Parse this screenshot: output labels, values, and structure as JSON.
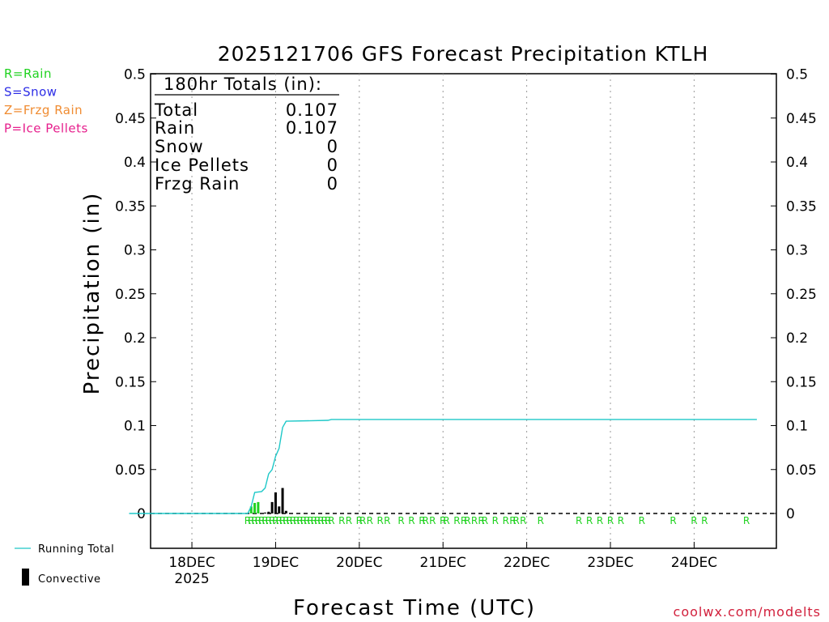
{
  "chart_data": {
    "type": "bar",
    "title": "2025121706 GFS Forecast Precipitation KTLH",
    "xlabel": "Forecast Time (UTC)",
    "ylabel": "Precipitation (in)",
    "ylim": [
      -0.04,
      0.5
    ],
    "yticks": [
      "0",
      "0.05",
      "0.1",
      "0.15",
      "0.2",
      "0.25",
      "0.3",
      "0.35",
      "0.4",
      "0.45",
      "0.5"
    ],
    "xlim_hours": [
      0,
      180
    ],
    "x_units": "forecast hours from 2025121706",
    "x_ticks": [
      {
        "hour": 18,
        "label": "18DEC",
        "sublabel": "2025"
      },
      {
        "hour": 42,
        "label": "19DEC",
        "sublabel": ""
      },
      {
        "hour": 66,
        "label": "20DEC",
        "sublabel": ""
      },
      {
        "hour": 90,
        "label": "21DEC",
        "sublabel": ""
      },
      {
        "hour": 114,
        "label": "22DEC",
        "sublabel": ""
      },
      {
        "hour": 138,
        "label": "23DEC",
        "sublabel": ""
      },
      {
        "hour": 162,
        "label": "24DEC",
        "sublabel": ""
      }
    ],
    "grid": "vertical dotted at day boundaries",
    "series": [
      {
        "name": "Rain",
        "values": [
          {
            "hour": 35,
            "value": 0.008
          },
          {
            "hour": 36,
            "value": 0.012
          },
          {
            "hour": 37,
            "value": 0.013
          }
        ]
      },
      {
        "name": "Convective",
        "values": [
          {
            "hour": 39,
            "value": 0.001
          },
          {
            "hour": 40,
            "value": 0.002
          },
          {
            "hour": 41,
            "value": 0.013
          },
          {
            "hour": 42,
            "value": 0.024
          },
          {
            "hour": 43,
            "value": 0.008
          },
          {
            "hour": 44,
            "value": 0.029
          },
          {
            "hour": 45,
            "value": 0.003
          }
        ]
      },
      {
        "name": "Running Total",
        "points": [
          {
            "hour": 0,
            "value": 0
          },
          {
            "hour": 34,
            "value": 0
          },
          {
            "hour": 35,
            "value": 0.008
          },
          {
            "hour": 36,
            "value": 0.024
          },
          {
            "hour": 38,
            "value": 0.025
          },
          {
            "hour": 39,
            "value": 0.029
          },
          {
            "hour": 40,
            "value": 0.045
          },
          {
            "hour": 41,
            "value": 0.05
          },
          {
            "hour": 42,
            "value": 0.065
          },
          {
            "hour": 43,
            "value": 0.074
          },
          {
            "hour": 44,
            "value": 0.098
          },
          {
            "hour": 45,
            "value": 0.105
          },
          {
            "hour": 57,
            "value": 0.106
          },
          {
            "hour": 58,
            "value": 0.107
          },
          {
            "hour": 180,
            "value": 0.107
          }
        ]
      }
    ],
    "precip_type_marks": {
      "symbol": "R",
      "hours": [
        34,
        35,
        36,
        37,
        38,
        39,
        40,
        41,
        42,
        43,
        44,
        45,
        46,
        47,
        48,
        49,
        50,
        51,
        52,
        53,
        54,
        55,
        56,
        57,
        58,
        61,
        63,
        66,
        67,
        69,
        72,
        74,
        78,
        81,
        84,
        85,
        87,
        90,
        91,
        94,
        96,
        97,
        99,
        101,
        102,
        105,
        108,
        110,
        111,
        113,
        118,
        129,
        132,
        135,
        138,
        141,
        147,
        156,
        162,
        165,
        177
      ]
    }
  },
  "totals_box": {
    "heading": "180hr Totals (in):",
    "rows": [
      {
        "label": "Total",
        "value": "0.107"
      },
      {
        "label": "Rain",
        "value": "0.107"
      },
      {
        "label": "Snow",
        "value": "0"
      },
      {
        "label": "Ice Pellets",
        "value": "0"
      },
      {
        "label": "Frzg Rain",
        "value": "0"
      }
    ]
  },
  "type_legend": [
    {
      "text": "R=Rain",
      "color": "#1fd21f"
    },
    {
      "text": "S=Snow",
      "color": "#2d2de6"
    },
    {
      "text": "Z=Frzg Rain",
      "color": "#f08c32"
    },
    {
      "text": "P=Ice Pellets",
      "color": "#e61e8c"
    }
  ],
  "bottom_legend": {
    "running_total": "Running Total",
    "convective": "Convective"
  },
  "credit": "coolwx.com/modelts",
  "colors": {
    "rain": "#1fd21f",
    "convective": "#000000",
    "running_total": "#1ec8c8",
    "credit": "#d2203c",
    "grid": "#999999"
  }
}
